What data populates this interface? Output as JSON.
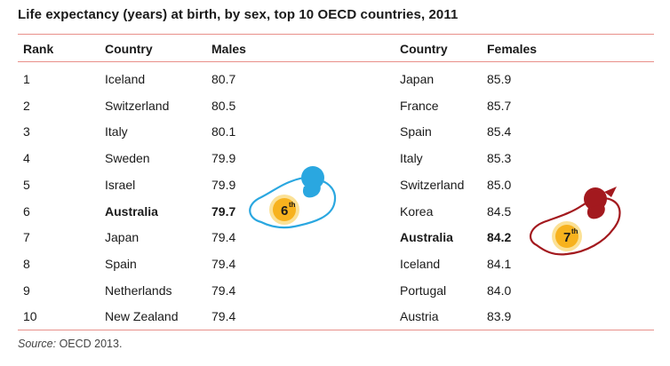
{
  "title": "Life expectancy (years) at birth, by sex, top 10 OECD countries, 2011",
  "headers": {
    "rank": "Rank",
    "country_m": "Country",
    "males": "Males",
    "country_f": "Country",
    "females": "Females"
  },
  "rows": [
    {
      "rank": "1",
      "male_country": "Iceland",
      "male_value": "80.7",
      "female_country": "Japan",
      "female_value": "85.9"
    },
    {
      "rank": "2",
      "male_country": "Switzerland",
      "male_value": "80.5",
      "female_country": "France",
      "female_value": "85.7"
    },
    {
      "rank": "3",
      "male_country": "Italy",
      "male_value": "80.1",
      "female_country": "Spain",
      "female_value": "85.4"
    },
    {
      "rank": "4",
      "male_country": "Sweden",
      "male_value": "79.9",
      "female_country": "Italy",
      "female_value": "85.3"
    },
    {
      "rank": "5",
      "male_country": "Israel",
      "male_value": "79.9",
      "female_country": "Switzerland",
      "female_value": "85.0"
    },
    {
      "rank": "6",
      "male_country": "Australia",
      "male_value": "79.7",
      "female_country": "Korea",
      "female_value": "84.5"
    },
    {
      "rank": "7",
      "male_country": "Japan",
      "male_value": "79.4",
      "female_country": "Australia",
      "female_value": "84.2"
    },
    {
      "rank": "8",
      "male_country": "Spain",
      "male_value": "79.4",
      "female_country": "Iceland",
      "female_value": "84.1"
    },
    {
      "rank": "9",
      "male_country": "Netherlands",
      "male_value": "79.4",
      "female_country": "Portugal",
      "female_value": "84.0"
    },
    {
      "rank": "10",
      "male_country": "New Zealand",
      "male_value": "79.4",
      "female_country": "Austria",
      "female_value": "83.9"
    }
  ],
  "highlight": {
    "male_row": 5,
    "female_row": 6
  },
  "badges": {
    "male": {
      "number": "6",
      "suffix": "th",
      "color": "#2aa7e0"
    },
    "female": {
      "number": "7",
      "suffix": "th",
      "color": "#a3191e"
    }
  },
  "source": {
    "label": "Source:",
    "text": " OECD 2013."
  },
  "colors": {
    "rule": "#e8908a",
    "badge_fill": "#f7b21e",
    "badge_glow": "#f9d46a"
  }
}
